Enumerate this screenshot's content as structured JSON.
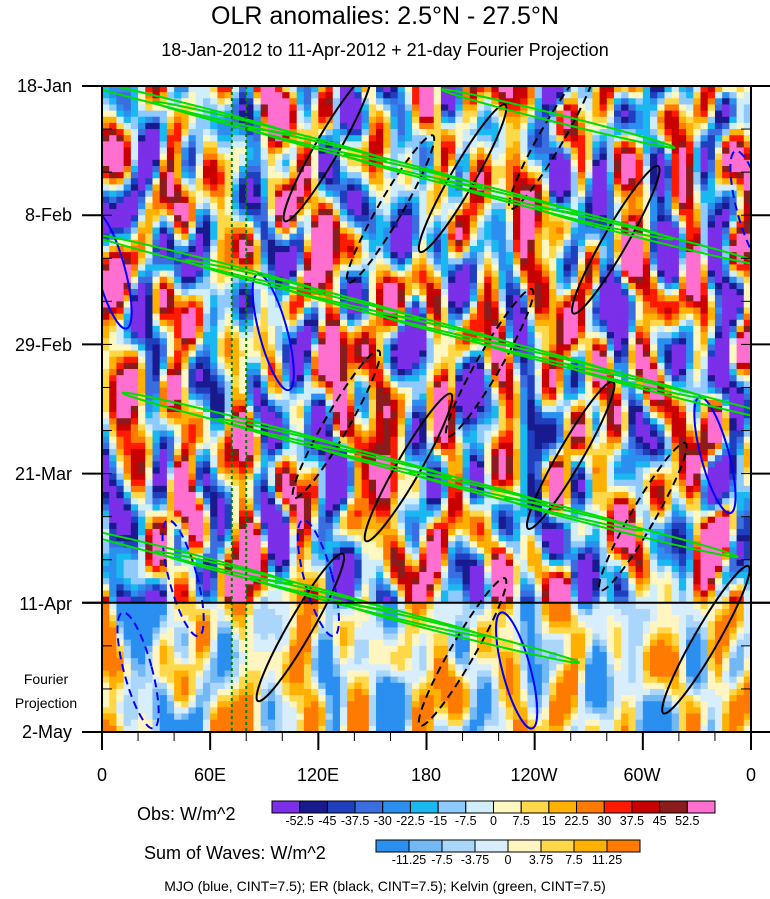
{
  "chart_data": {
    "type": "heatmap",
    "title": "OLR anomalies: 2.5°N - 27.5°N",
    "subtitle": "18-Jan-2012 to 11-Apr-2012 + 21-day Fourier Projection",
    "x_axis": {
      "label": "",
      "ticks": [
        "0",
        "60E",
        "120E",
        "180",
        "120W",
        "60W",
        "0"
      ],
      "tick_values": [
        0,
        60,
        120,
        180,
        240,
        300,
        360
      ],
      "range": [
        0,
        360
      ]
    },
    "y_axis": {
      "ticks": [
        "18-Jan",
        "8-Feb",
        "29-Feb",
        "21-Mar",
        "11-Apr",
        "2-May"
      ],
      "tick_days": [
        0,
        21,
        42,
        63,
        84,
        105
      ],
      "range_days": [
        0,
        105
      ],
      "fourier_label": [
        "Fourier",
        "Projection"
      ],
      "projection_start_day": 84
    },
    "reference_longitudes": [
      72,
      80
    ],
    "obs_colorbar": {
      "label": "Obs: W/m^2",
      "levels": [
        "-52.5",
        "-45",
        "-37.5",
        "-30",
        "-22.5",
        "-15",
        "-7.5",
        "0",
        "7.5",
        "15",
        "22.5",
        "30",
        "37.5",
        "45",
        "52.5"
      ],
      "colors": [
        "#7b2fe8",
        "#1a1a8f",
        "#1f3fbf",
        "#3a6ee0",
        "#2b8ff0",
        "#1ab8f0",
        "#8ec9ff",
        "#cfeefa",
        "#fff7c0",
        "#ffd84a",
        "#ffb000",
        "#ff7a00",
        "#ff1a00",
        "#c80000",
        "#8b1c1c",
        "#ff6fcf"
      ]
    },
    "waves_colorbar": {
      "label": "Sum of Waves: W/m^2",
      "levels": [
        "-11.25",
        "-7.5",
        "-3.75",
        "0",
        "3.75",
        "7.5",
        "11.25"
      ],
      "colors": [
        "#2b8ff0",
        "#72b8f5",
        "#a9d6fa",
        "#d8eefc",
        "#fff5c0",
        "#ffd84a",
        "#ffb000",
        "#ff7a00"
      ]
    },
    "contours": [
      {
        "name": "MJO",
        "color": "#0000ff",
        "cint": 7.5
      },
      {
        "name": "ER",
        "color": "#000000",
        "cint": 7.5
      },
      {
        "name": "Kelvin",
        "color": "#00dd00",
        "cint": 7.5
      }
    ],
    "footer": "MJO (blue, CINT=7.5); ER (black, CINT=7.5); Kelvin (green, CINT=7.5)"
  }
}
